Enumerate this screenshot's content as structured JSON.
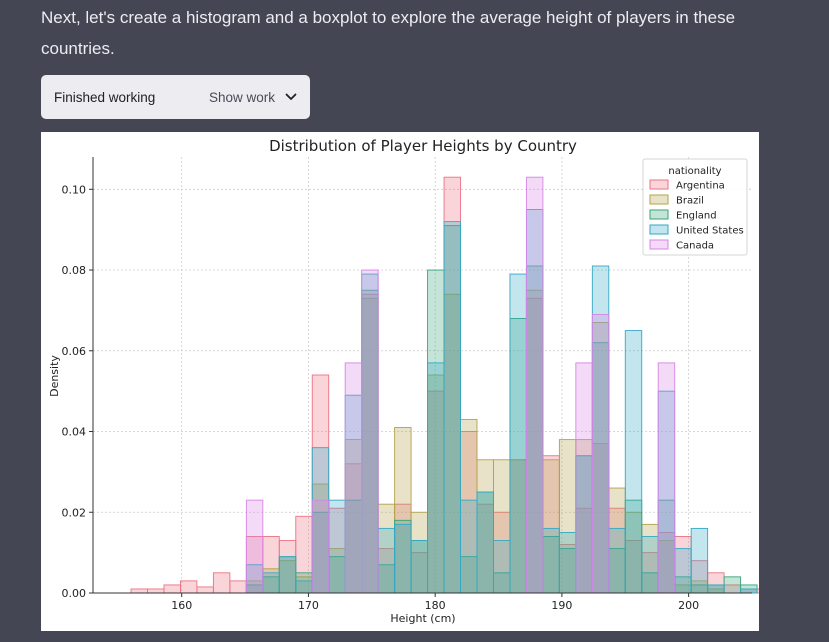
{
  "message": {
    "text": "Next, let's create a histogram and a boxplot to explore the average height of players in these countries."
  },
  "work_panel": {
    "status": "Finished working",
    "show_label": "Show work",
    "toggle_icon": "chevron-down-icon"
  },
  "chart_data": {
    "type": "histogram",
    "title": "Distribution of Player Heights by Country",
    "xlabel": "Height (cm)",
    "ylabel": "Density",
    "xlim": [
      153,
      205
    ],
    "ylim": [
      0,
      0.108
    ],
    "xticks": [
      160,
      170,
      180,
      190,
      200
    ],
    "yticks": [
      0.0,
      0.02,
      0.04,
      0.06,
      0.08,
      0.1
    ],
    "xtick_labels": [
      "160",
      "170",
      "180",
      "190",
      "200"
    ],
    "ytick_labels": [
      "0.00",
      "0.02",
      "0.04",
      "0.06",
      "0.08",
      "0.10"
    ],
    "grid": true,
    "bin_start": 156,
    "bin_width": 1.3,
    "legend": {
      "title": "nationality",
      "placement": "top-right"
    },
    "series": [
      {
        "name": "Argentina",
        "color": "#ec7384",
        "values": [
          0.001,
          0.001,
          0.002,
          0.003,
          0.0015,
          0.005,
          0.003,
          0.014,
          0.014,
          0.013,
          0.019,
          0.054,
          0.021,
          0.032,
          0.074,
          0.011,
          0.022,
          0.01,
          0.05,
          0.103,
          0.04,
          0.022,
          0.02,
          0.033,
          0.073,
          0.034,
          0.012,
          0.021,
          0.037,
          0.021,
          0.013,
          0.01,
          0.015,
          0.014,
          0.008,
          0.005,
          0.002,
          0.001,
          0.001,
          0,
          0
        ]
      },
      {
        "name": "Brazil",
        "color": "#b3a34a",
        "values": [
          0,
          0,
          0,
          0,
          0,
          0,
          0,
          0.003,
          0.006,
          0.008,
          0.004,
          0.027,
          0.011,
          0.038,
          0.073,
          0.022,
          0.041,
          0.02,
          0.054,
          0.074,
          0.043,
          0.033,
          0.033,
          0.033,
          0.075,
          0.033,
          0.038,
          0.038,
          0.067,
          0.026,
          0.02,
          0.017,
          0.013,
          0.002,
          0.003,
          0.001,
          0,
          0,
          0,
          0,
          0
        ]
      },
      {
        "name": "England",
        "color": "#3aa47b",
        "values": [
          0,
          0,
          0,
          0,
          0,
          0,
          0,
          0.002,
          0.004,
          0.009,
          0.005,
          0.02,
          0.009,
          0.023,
          0.075,
          0.007,
          0.018,
          0.013,
          0.08,
          0.091,
          0.009,
          0.025,
          0.005,
          0.068,
          0.081,
          0.014,
          0.011,
          0.034,
          0.062,
          0.011,
          0.023,
          0.005,
          0.023,
          0.004,
          0.002,
          0.002,
          0.004,
          0.002,
          0,
          0,
          0
        ]
      },
      {
        "name": "United States",
        "color": "#34a9c6",
        "values": [
          0,
          0,
          0,
          0,
          0,
          0,
          0,
          0.007,
          0.005,
          0.009,
          0.003,
          0.036,
          0.023,
          0.049,
          0.079,
          0.016,
          0.017,
          0.013,
          0.057,
          0.092,
          0.023,
          0.025,
          0.013,
          0.079,
          0.095,
          0.016,
          0.015,
          0.034,
          0.081,
          0.016,
          0.065,
          0.014,
          0.05,
          0.011,
          0.016,
          0.002,
          0,
          0.001,
          0,
          0.001,
          0
        ]
      },
      {
        "name": "Canada",
        "color": "#d786e5",
        "values": [
          0,
          0,
          0,
          0,
          0,
          0,
          0,
          0.023,
          0,
          0,
          0,
          0.023,
          0,
          0.057,
          0.08,
          0,
          0,
          0,
          0,
          0,
          0,
          0,
          0,
          0,
          0.103,
          0,
          0,
          0.057,
          0.069,
          0,
          0,
          0,
          0.057,
          0,
          0,
          0,
          0,
          0,
          0,
          0,
          0
        ]
      }
    ]
  }
}
